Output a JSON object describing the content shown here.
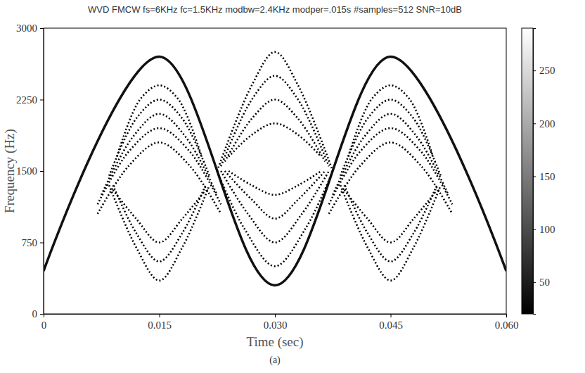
{
  "chart_data": {
    "type": "line",
    "title": "WVD FMCW fs=6KHz fc=1.5KHz modbw=2.4KHz modper=.015s #samples=512 SNR=10dB",
    "x_label": "Time (sec)",
    "y_label": "Frequency (Hz)",
    "caption": "(a)",
    "xlim": [
      0,
      0.06
    ],
    "xticks": [
      0,
      0.015,
      {
        "value": 0.03,
        "label": "0.030"
      },
      0.045,
      {
        "value": 0.06,
        "label": "0.060"
      }
    ],
    "ylim": [
      0,
      3000
    ],
    "yticks": [
      0,
      750,
      1500,
      2250,
      3000
    ],
    "colorbar": {
      "range": [
        20,
        290
      ],
      "ticks": [
        50,
        100,
        150,
        200,
        250
      ]
    },
    "series": [
      {
        "x": [
          0,
          0.015,
          0.03,
          0.045,
          0.06
        ],
        "values": [
          450,
          2700,
          300,
          2700,
          450
        ],
        "color": "#111111",
        "line_style": "solid"
      },
      {
        "x": [
          0.0095,
          0.0125,
          0.015,
          0.0175,
          0.0205
        ],
        "values": [
          1650,
          2250,
          2400,
          2250,
          1650
        ],
        "color": "#000000",
        "line_style": "dotted"
      },
      {
        "x": [
          0.0085,
          0.012,
          0.015,
          0.018,
          0.0215
        ],
        "values": [
          1450,
          2050,
          2250,
          2050,
          1450
        ],
        "color": "#000000",
        "line_style": "dotted"
      },
      {
        "x": [
          0.0075,
          0.0115,
          0.015,
          0.0185,
          0.0225
        ],
        "values": [
          1250,
          1850,
          2100,
          1850,
          1250
        ],
        "color": "#000000",
        "line_style": "dotted"
      },
      {
        "x": [
          0.007,
          0.011,
          0.015,
          0.019,
          0.023
        ],
        "values": [
          1150,
          1700,
          1950,
          1700,
          1150
        ],
        "color": "#000000",
        "line_style": "dotted"
      },
      {
        "x": [
          0.007,
          0.011,
          0.015,
          0.019,
          0.023
        ],
        "values": [
          1050,
          1550,
          1800,
          1550,
          1050
        ],
        "color": "#000000",
        "line_style": "dotted"
      },
      {
        "x": [
          0.0085,
          0.012,
          0.015,
          0.018,
          0.0215
        ],
        "values": [
          1350,
          700,
          350,
          700,
          1350
        ],
        "color": "#000000",
        "line_style": "dotted"
      },
      {
        "x": [
          0.009,
          0.012,
          0.015,
          0.018,
          0.021
        ],
        "values": [
          1350,
          850,
          550,
          850,
          1350
        ],
        "color": "#000000",
        "line_style": "dotted"
      },
      {
        "x": [
          0.009,
          0.012,
          0.015,
          0.018,
          0.021
        ],
        "values": [
          1300,
          1000,
          750,
          1000,
          1300
        ],
        "color": "#000000",
        "line_style": "dotted"
      },
      {
        "x": [
          0.0395,
          0.0425,
          0.045,
          0.0475,
          0.0505
        ],
        "values": [
          1650,
          2250,
          2400,
          2250,
          1650
        ],
        "color": "#000000",
        "line_style": "dotted"
      },
      {
        "x": [
          0.0385,
          0.042,
          0.045,
          0.048,
          0.0515
        ],
        "values": [
          1450,
          2050,
          2250,
          2050,
          1450
        ],
        "color": "#000000",
        "line_style": "dotted"
      },
      {
        "x": [
          0.0375,
          0.0415,
          0.045,
          0.0485,
          0.0525
        ],
        "values": [
          1250,
          1850,
          2100,
          1850,
          1250
        ],
        "color": "#000000",
        "line_style": "dotted"
      },
      {
        "x": [
          0.037,
          0.041,
          0.045,
          0.049,
          0.053
        ],
        "values": [
          1150,
          1700,
          1950,
          1700,
          1150
        ],
        "color": "#000000",
        "line_style": "dotted"
      },
      {
        "x": [
          0.037,
          0.041,
          0.045,
          0.049,
          0.053
        ],
        "values": [
          1050,
          1550,
          1800,
          1550,
          1050
        ],
        "color": "#000000",
        "line_style": "dotted"
      },
      {
        "x": [
          0.0385,
          0.042,
          0.045,
          0.048,
          0.0515
        ],
        "values": [
          1350,
          700,
          350,
          700,
          1350
        ],
        "color": "#000000",
        "line_style": "dotted"
      },
      {
        "x": [
          0.039,
          0.042,
          0.045,
          0.048,
          0.051
        ],
        "values": [
          1350,
          850,
          550,
          850,
          1350
        ],
        "color": "#000000",
        "line_style": "dotted"
      },
      {
        "x": [
          0.039,
          0.042,
          0.045,
          0.048,
          0.051
        ],
        "values": [
          1300,
          1000,
          750,
          1000,
          1300
        ],
        "color": "#000000",
        "line_style": "dotted"
      },
      {
        "x": [
          0.0225,
          0.027,
          0.03,
          0.033,
          0.0375
        ],
        "values": [
          1500,
          2400,
          2750,
          2400,
          1500
        ],
        "color": "#000000",
        "line_style": "dotted"
      },
      {
        "x": [
          0.023,
          0.027,
          0.03,
          0.033,
          0.037
        ],
        "values": [
          1550,
          2250,
          2500,
          2250,
          1550
        ],
        "color": "#000000",
        "line_style": "dotted"
      },
      {
        "x": [
          0.0235,
          0.027,
          0.03,
          0.033,
          0.0365
        ],
        "values": [
          1600,
          2050,
          2250,
          2050,
          1600
        ],
        "color": "#000000",
        "line_style": "dotted"
      },
      {
        "x": [
          0.024,
          0.027,
          0.03,
          0.033,
          0.036
        ],
        "values": [
          1650,
          1880,
          2000,
          1880,
          1650
        ],
        "color": "#000000",
        "line_style": "dotted"
      },
      {
        "x": [
          0.0225,
          0.026,
          0.03,
          0.034,
          0.0375
        ],
        "values": [
          1500,
          900,
          500,
          900,
          1500
        ],
        "color": "#000000",
        "line_style": "dotted"
      },
      {
        "x": [
          0.023,
          0.0265,
          0.03,
          0.0335,
          0.037
        ],
        "values": [
          1500,
          1050,
          750,
          1050,
          1500
        ],
        "color": "#000000",
        "line_style": "dotted"
      },
      {
        "x": [
          0.0235,
          0.027,
          0.03,
          0.033,
          0.0365
        ],
        "values": [
          1500,
          1200,
          1000,
          1200,
          1500
        ],
        "color": "#000000",
        "line_style": "dotted"
      },
      {
        "x": [
          0.024,
          0.027,
          0.03,
          0.033,
          0.036
        ],
        "values": [
          1500,
          1350,
          1250,
          1350,
          1500
        ],
        "color": "#000000",
        "line_style": "dotted"
      }
    ]
  }
}
